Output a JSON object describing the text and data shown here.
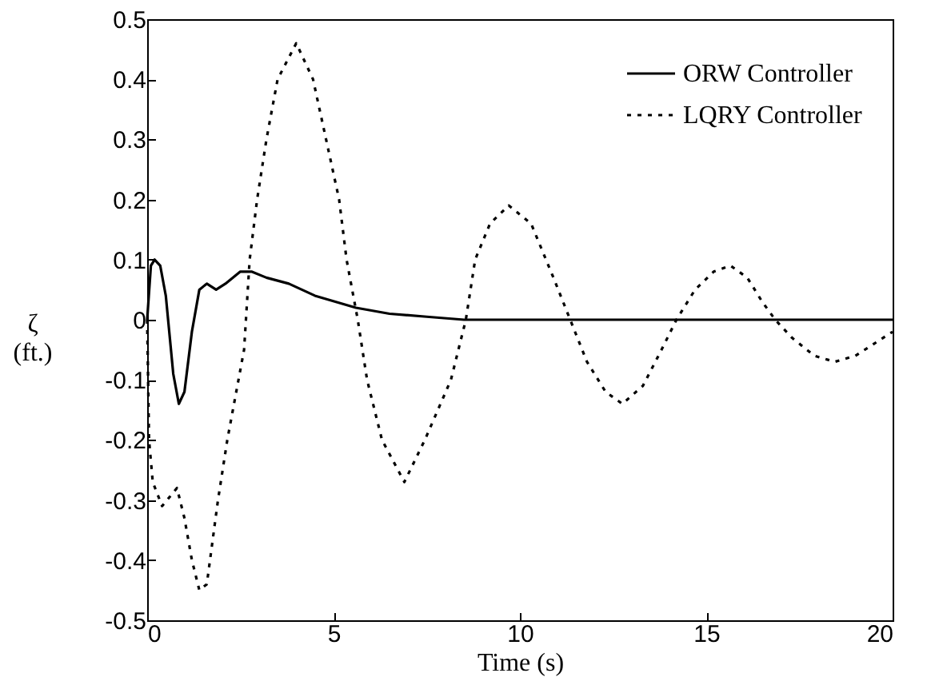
{
  "chart_data": {
    "type": "line",
    "xlabel": "Time (s)",
    "ylabel": "ζ (ft.)",
    "xlim": [
      0,
      20
    ],
    "ylim": [
      -0.5,
      0.5
    ],
    "xticks": [
      0,
      5,
      10,
      15,
      20
    ],
    "yticks": [
      -0.5,
      -0.4,
      -0.3,
      -0.2,
      -0.1,
      0,
      0.1,
      0.2,
      0.3,
      0.4,
      0.5
    ],
    "grid": false,
    "legend": "top right",
    "marker": "none",
    "series": [
      {
        "name": "ORW Controller",
        "color": "#000000",
        "line_style": "solid",
        "x": [
          0,
          0.1,
          0.2,
          0.35,
          0.5,
          0.7,
          0.85,
          1.0,
          1.2,
          1.4,
          1.6,
          1.85,
          2.1,
          2.5,
          2.8,
          3.2,
          3.8,
          4.5,
          5.6,
          6.5,
          7.5,
          8.5,
          10,
          15,
          20
        ],
        "values": [
          0,
          0.09,
          0.1,
          0.09,
          0.04,
          -0.09,
          -0.14,
          -0.12,
          -0.02,
          0.05,
          0.06,
          0.05,
          0.06,
          0.08,
          0.08,
          0.07,
          0.06,
          0.04,
          0.02,
          0.01,
          0.005,
          0,
          0,
          0,
          0
        ]
      },
      {
        "name": "LQRY Controller",
        "color": "#000000",
        "line_style": "dotted",
        "x": [
          0,
          0.05,
          0.15,
          0.4,
          0.8,
          1.0,
          1.2,
          1.4,
          1.6,
          1.9,
          2.15,
          2.6,
          2.75,
          2.95,
          3.2,
          3.5,
          4.0,
          4.45,
          4.8,
          5.15,
          5.35,
          5.65,
          5.9,
          6.3,
          6.9,
          7.45,
          8.15,
          8.55,
          8.8,
          9.2,
          9.7,
          10.3,
          10.9,
          11.35,
          11.8,
          12.3,
          12.75,
          13.3,
          13.8,
          14.2,
          14.7,
          15.2,
          15.65,
          16.1,
          16.5,
          16.85,
          17.3,
          17.9,
          18.45,
          19.0,
          19.5,
          20
        ],
        "values": [
          0,
          -0.2,
          -0.27,
          -0.31,
          -0.28,
          -0.33,
          -0.4,
          -0.45,
          -0.44,
          -0.3,
          -0.2,
          -0.05,
          0.1,
          0.2,
          0.3,
          0.4,
          0.46,
          0.4,
          0.3,
          0.2,
          0.1,
          0,
          -0.1,
          -0.2,
          -0.27,
          -0.2,
          -0.1,
          0,
          0.1,
          0.16,
          0.19,
          0.16,
          0.07,
          0,
          -0.07,
          -0.12,
          -0.14,
          -0.11,
          -0.05,
          0,
          0.05,
          0.08,
          0.09,
          0.07,
          0.03,
          0,
          -0.03,
          -0.06,
          -0.07,
          -0.06,
          -0.04,
          -0.02
        ]
      }
    ]
  }
}
